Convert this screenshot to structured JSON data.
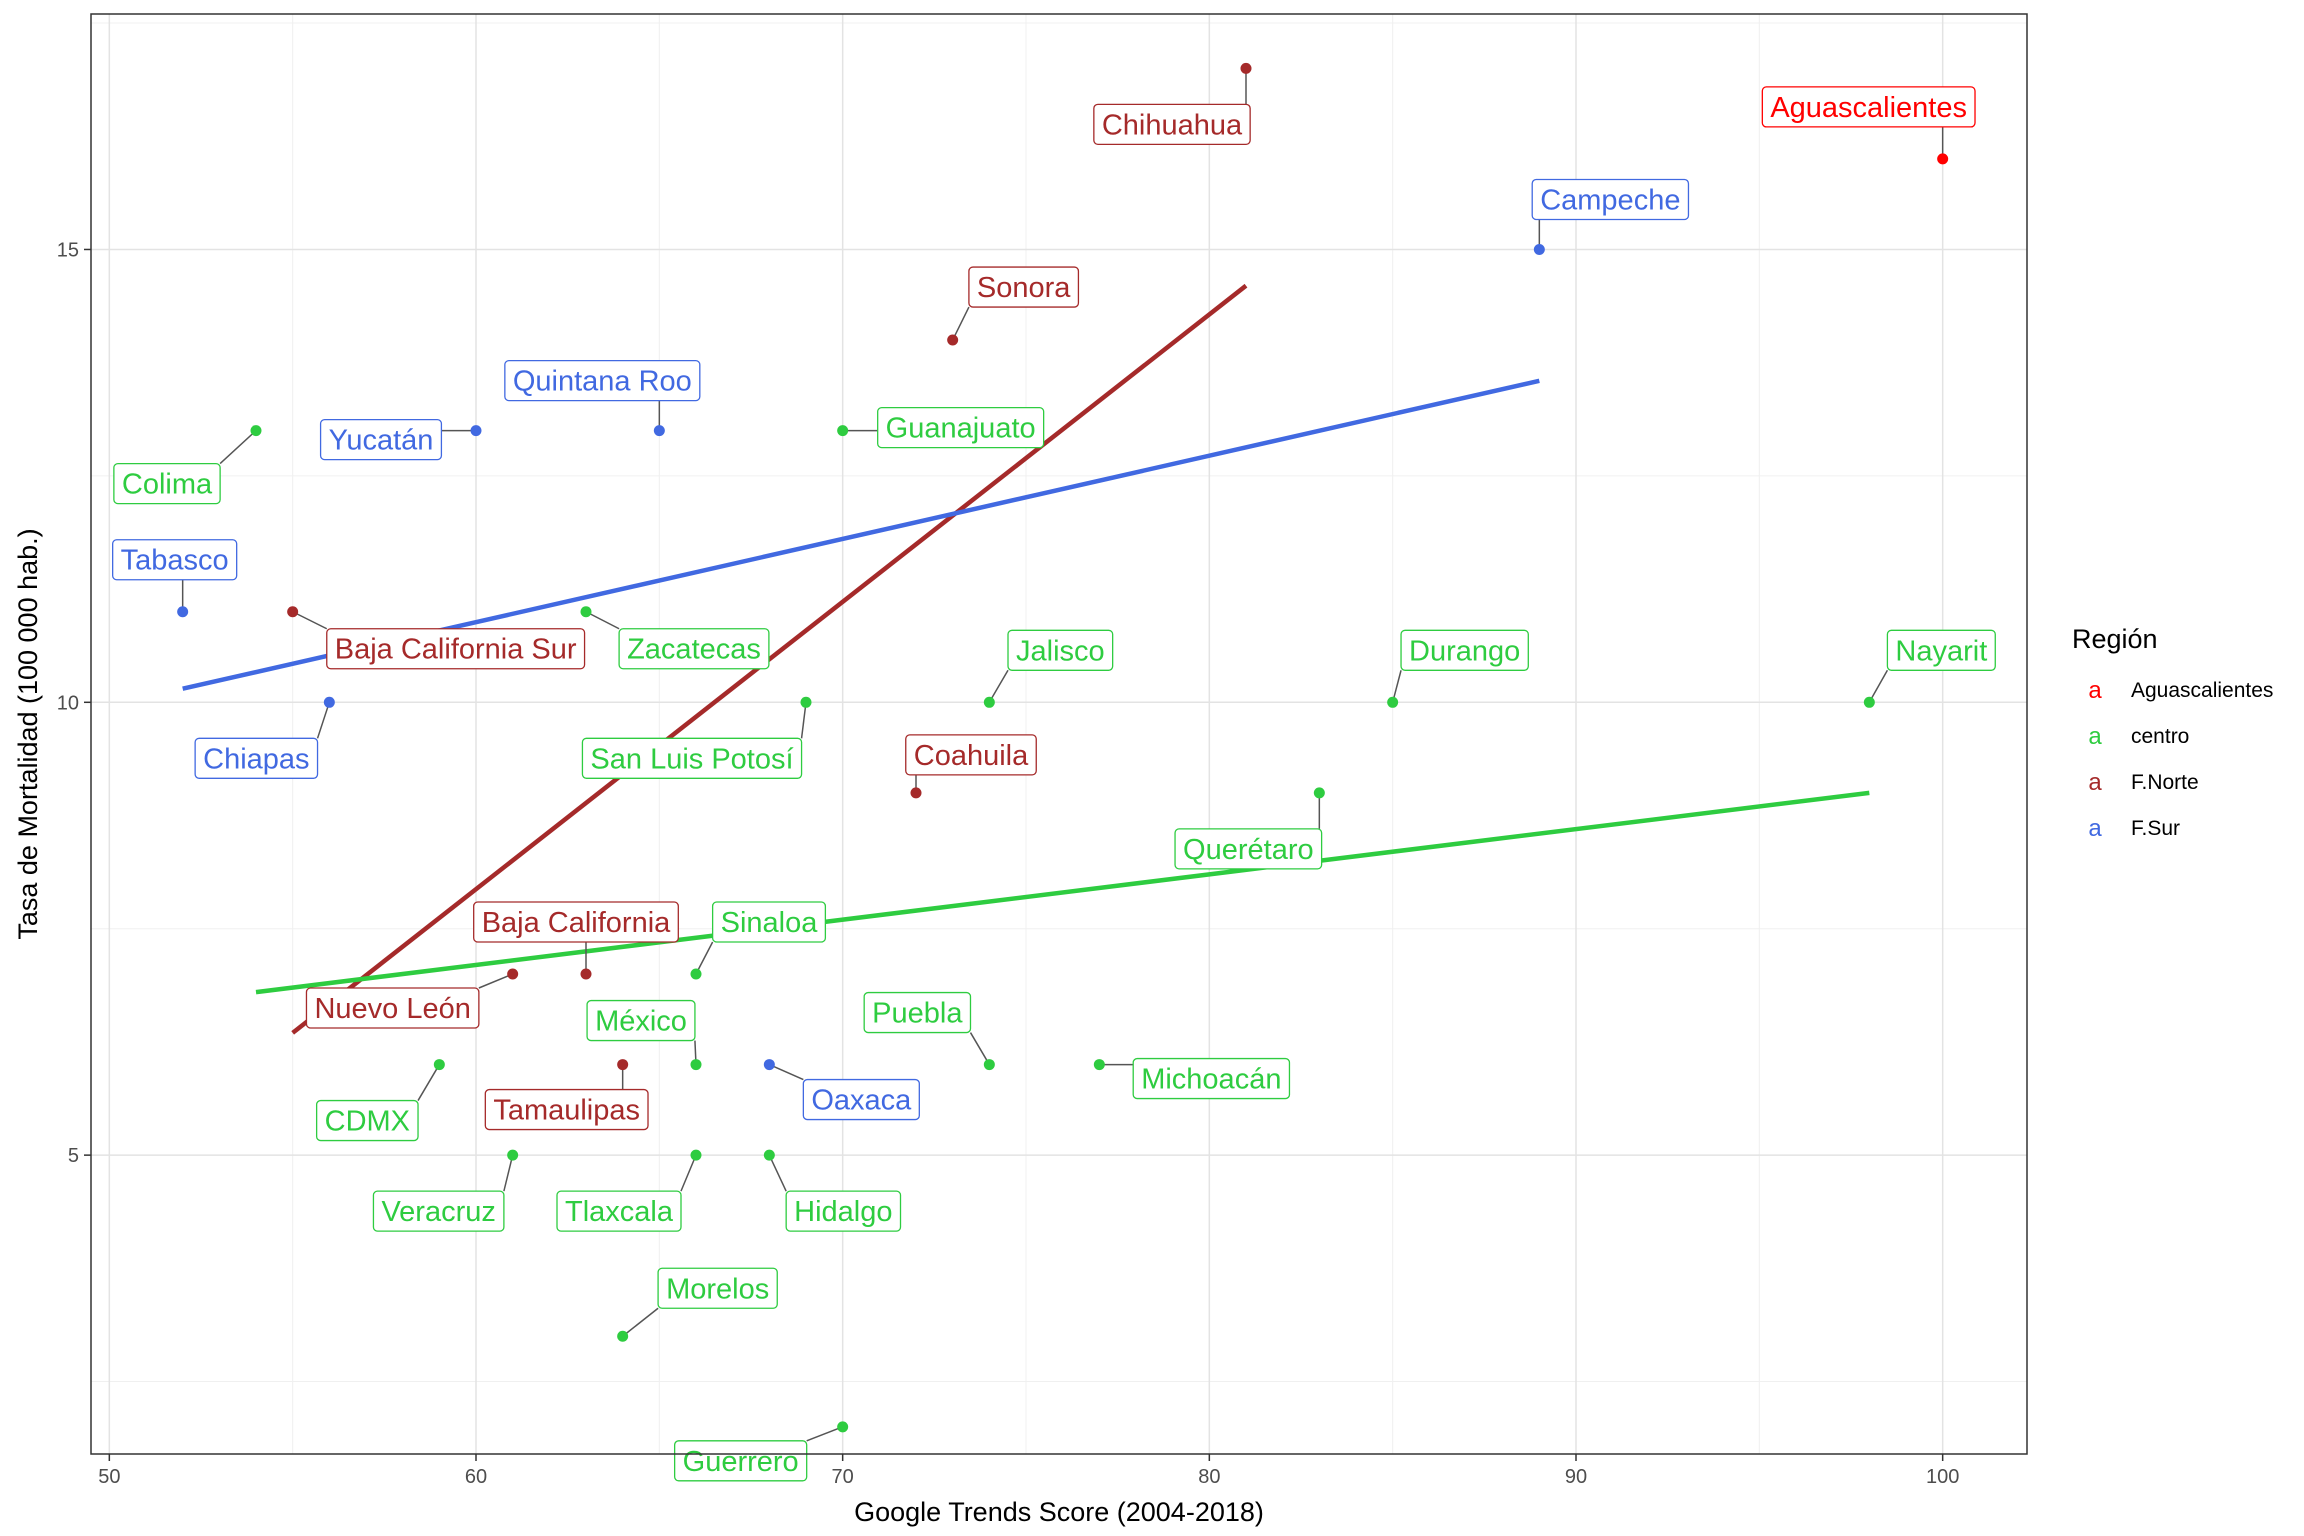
{
  "chart_data": {
    "type": "scatter",
    "xlabel": "Google Trends Score (2004-2018)",
    "ylabel": "Tasa de Mortalidad   (100 000 hab.)",
    "xlim": [
      49.5,
      102.3
    ],
    "ylim": [
      1.7,
      17.6
    ],
    "x_ticks": [
      50,
      60,
      70,
      80,
      90,
      100
    ],
    "y_ticks": [
      5,
      10,
      15
    ],
    "grid": true,
    "legend": {
      "title": "Región",
      "key_glyph": "a",
      "position": "right",
      "entries": [
        {
          "name": "Aguascalientes",
          "color": "#FF0000"
        },
        {
          "name": "centro",
          "color": "#2ECC40"
        },
        {
          "name": "F.Norte",
          "color": "#A52A2A"
        },
        {
          "name": "F.Sur",
          "color": "#4169E1"
        }
      ]
    },
    "colors": {
      "Aguascalientes": "#FF0000",
      "centro": "#2ECC40",
      "F.Norte": "#A52A2A",
      "F.Sur": "#4169E1"
    },
    "points": [
      {
        "name": "Aguascalientes",
        "region": "Aguascalientes",
        "x": 100,
        "y": 16.0
      },
      {
        "name": "Chihuahua",
        "region": "F.Norte",
        "x": 81,
        "y": 17.0
      },
      {
        "name": "Campeche",
        "region": "F.Sur",
        "x": 89,
        "y": 15.0
      },
      {
        "name": "Sonora",
        "region": "F.Norte",
        "x": 73,
        "y": 14.0
      },
      {
        "name": "Quintana Roo",
        "region": "F.Sur",
        "x": 65,
        "y": 13.0
      },
      {
        "name": "Yucatán",
        "region": "F.Sur",
        "x": 60,
        "y": 13.0
      },
      {
        "name": "Guanajuato",
        "region": "centro",
        "x": 70,
        "y": 13.0
      },
      {
        "name": "Colima",
        "region": "centro",
        "x": 54,
        "y": 13.0
      },
      {
        "name": "Tabasco",
        "region": "F.Sur",
        "x": 52,
        "y": 11.0
      },
      {
        "name": "Baja California Sur",
        "region": "F.Norte",
        "x": 55,
        "y": 11.0
      },
      {
        "name": "Zacatecas",
        "region": "centro",
        "x": 63,
        "y": 11.0
      },
      {
        "name": "Jalisco",
        "region": "centro",
        "x": 74,
        "y": 10.0
      },
      {
        "name": "Durango",
        "region": "centro",
        "x": 85,
        "y": 10.0
      },
      {
        "name": "Nayarit",
        "region": "centro",
        "x": 98,
        "y": 10.0
      },
      {
        "name": "Chiapas",
        "region": "F.Sur",
        "x": 56,
        "y": 10.0
      },
      {
        "name": "San Luis Potosí",
        "region": "centro",
        "x": 69,
        "y": 10.0
      },
      {
        "name": "Coahuila",
        "region": "F.Norte",
        "x": 72,
        "y": 9.0
      },
      {
        "name": "Querétaro",
        "region": "centro",
        "x": 83,
        "y": 9.0
      },
      {
        "name": "Baja California",
        "region": "F.Norte",
        "x": 63,
        "y": 7.0
      },
      {
        "name": "Sinaloa",
        "region": "centro",
        "x": 66,
        "y": 7.0
      },
      {
        "name": "Nuevo León",
        "region": "F.Norte",
        "x": 61,
        "y": 7.0
      },
      {
        "name": "México",
        "region": "centro",
        "x": 66,
        "y": 6.0
      },
      {
        "name": "Puebla",
        "region": "centro",
        "x": 74,
        "y": 6.0
      },
      {
        "name": "Michoacán",
        "region": "centro",
        "x": 77,
        "y": 6.0
      },
      {
        "name": "Oaxaca",
        "region": "F.Sur",
        "x": 68,
        "y": 6.0
      },
      {
        "name": "CDMX",
        "region": "centro",
        "x": 59,
        "y": 6.0
      },
      {
        "name": "Tamaulipas",
        "region": "F.Norte",
        "x": 64,
        "y": 6.0
      },
      {
        "name": "Veracruz",
        "region": "centro",
        "x": 61,
        "y": 5.0
      },
      {
        "name": "Tlaxcala",
        "region": "centro",
        "x": 66,
        "y": 5.0
      },
      {
        "name": "Hidalgo",
        "region": "centro",
        "x": 68,
        "y": 5.0
      },
      {
        "name": "Morelos",
        "region": "centro",
        "x": 64,
        "y": 3.0
      },
      {
        "name": "Guerrero",
        "region": "centro",
        "x": 70,
        "y": 2.0
      }
    ],
    "trend_lines": [
      {
        "region": "F.Norte",
        "x": [
          55,
          81
        ],
        "y": [
          6.35,
          14.6
        ]
      },
      {
        "region": "F.Sur",
        "x": [
          52,
          89
        ],
        "y": [
          10.15,
          13.55
        ]
      },
      {
        "region": "centro",
        "x": [
          54,
          98
        ],
        "y": [
          6.8,
          9.0
        ]
      }
    ]
  }
}
